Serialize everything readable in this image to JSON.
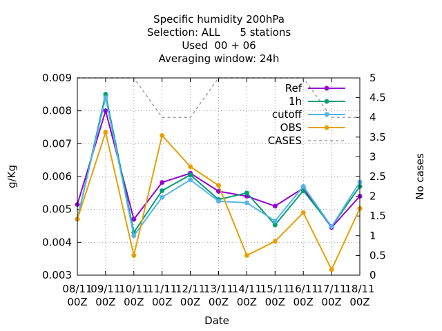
{
  "chart_data": {
    "type": "line",
    "title_lines": [
      "Specific humidity 200hPa",
      "Selection: ALL      5 stations",
      "Used  00 + 06",
      "Averaging window: 24h"
    ],
    "xlabel": "Date",
    "ylabel": "g/Kg",
    "y2label": "No cases",
    "categories": [
      [
        "08/11",
        "00Z"
      ],
      [
        "09/11",
        "00Z"
      ],
      [
        "10/11",
        "00Z"
      ],
      [
        "11/11",
        "00Z"
      ],
      [
        "12/11",
        "00Z"
      ],
      [
        "13/11",
        "00Z"
      ],
      [
        "14/11",
        "00Z"
      ],
      [
        "15/11",
        "00Z"
      ],
      [
        "16/11",
        "00Z"
      ],
      [
        "17/11",
        "00Z"
      ],
      [
        "18/11",
        "00Z"
      ]
    ],
    "ylim": [
      0.003,
      0.009
    ],
    "yticks": [
      "0.003",
      "0.004",
      "0.005",
      "0.006",
      "0.007",
      "0.008",
      "0.009"
    ],
    "y2lim": [
      0,
      5
    ],
    "y2ticks": [
      "0",
      "0.5",
      "1",
      "1.5",
      "2",
      "2.5",
      "3",
      "3.5",
      "4",
      "4.5",
      "5"
    ],
    "grid": true,
    "legend_position": "top-right",
    "series": [
      {
        "name": "Ref",
        "color": "#9400d3",
        "axis": "y",
        "dash": false,
        "marker": true,
        "values": [
          0.00515,
          0.008,
          0.0047,
          0.00582,
          0.0061,
          0.00555,
          0.0054,
          0.0051,
          0.00565,
          0.00445,
          0.0054
        ]
      },
      {
        "name": "1h",
        "color": "#009e73",
        "axis": "y",
        "dash": false,
        "marker": true,
        "values": [
          0.0047,
          0.0085,
          0.0043,
          0.00557,
          0.00605,
          0.0053,
          0.0055,
          0.00453,
          0.00557,
          0.00448,
          0.0057
        ]
      },
      {
        "name": "cutoff",
        "color": "#56b4e9",
        "axis": "y",
        "dash": false,
        "marker": true,
        "values": [
          0.0047,
          0.0084,
          0.0042,
          0.00537,
          0.0059,
          0.00525,
          0.0052,
          0.00465,
          0.0057,
          0.00448,
          0.00583
        ]
      },
      {
        "name": "OBS",
        "color": "#e69f00",
        "axis": "y",
        "dash": false,
        "marker": true,
        "values": [
          0.0047,
          0.00735,
          0.0036,
          0.00725,
          0.0063,
          0.00573,
          0.0036,
          0.00403,
          0.0049,
          0.00317,
          0.00503
        ]
      },
      {
        "name": "CASES",
        "color": "#a0a0a0",
        "axis": "y2",
        "dash": true,
        "marker": false,
        "values": [
          5,
          5,
          5,
          4,
          4,
          5,
          5,
          5,
          5,
          4,
          4
        ]
      }
    ]
  }
}
